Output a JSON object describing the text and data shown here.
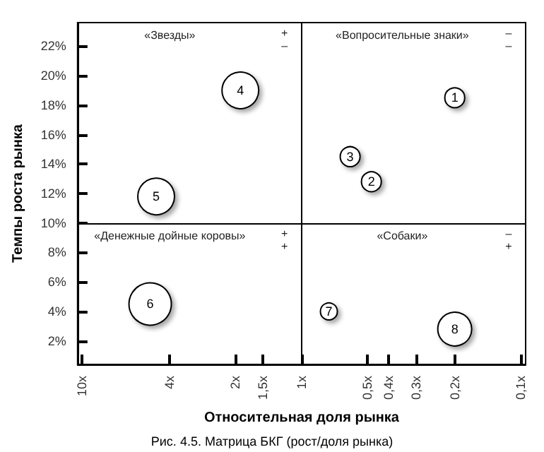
{
  "chart_data": {
    "type": "bubble",
    "xlabel": "Относительная доля рынка",
    "ylabel": "Темпы роста рынка",
    "log": "x",
    "series": [
      {
        "name": "1",
        "color": "#ffffff",
        "x": [
          0.2
        ],
        "values": [
          18.5
        ],
        "sizes": [
          0.22
        ]
      },
      {
        "name": "2",
        "color": "#ffffff",
        "x": [
          0.48
        ],
        "values": [
          12.8
        ],
        "sizes": [
          0.22
        ]
      },
      {
        "name": "3",
        "color": "#ffffff",
        "x": [
          0.6
        ],
        "values": [
          14.5
        ],
        "sizes": [
          0.22
        ]
      },
      {
        "name": "4",
        "color": "#ffffff",
        "x": [
          1.9
        ],
        "values": [
          19
        ],
        "sizes": [
          0.75
        ]
      },
      {
        "name": "5",
        "color": "#ffffff",
        "x": [
          4.6
        ],
        "values": [
          11.8
        ],
        "sizes": [
          0.75
        ]
      },
      {
        "name": "6",
        "color": "#ffffff",
        "x": [
          4.9
        ],
        "values": [
          4.5
        ],
        "sizes": [
          1
        ]
      },
      {
        "name": "7",
        "color": "#ffffff",
        "x": [
          0.75
        ],
        "values": [
          4
        ],
        "sizes": [
          0.16
        ]
      },
      {
        "name": "8",
        "color": "#ffffff",
        "x": [
          0.2
        ],
        "values": [
          2.8
        ],
        "sizes": [
          0.64
        ]
      }
    ],
    "xlim": [
      10.5,
      0.095
    ],
    "xticks": [
      {
        "value": 10,
        "label": "10x"
      },
      {
        "value": 4,
        "label": "4x"
      },
      {
        "value": 2,
        "label": "2x"
      },
      {
        "value": 1.5,
        "label": "1,5x"
      },
      {
        "value": 1,
        "label": "1x"
      },
      {
        "value": 0.5,
        "label": "0,5x"
      },
      {
        "value": 0.4,
        "label": "0,4x"
      },
      {
        "value": 0.3,
        "label": "0,3x"
      },
      {
        "value": 0.2,
        "label": "0,2x"
      },
      {
        "value": 0.1,
        "label": "0,1x"
      }
    ],
    "ylim": [
      0.4,
      23.6
    ],
    "yticks": [
      {
        "value": 2,
        "label": "2%"
      },
      {
        "value": 4,
        "label": "4%"
      },
      {
        "value": 6,
        "label": "6%"
      },
      {
        "value": 8,
        "label": "8%"
      },
      {
        "value": 10,
        "label": "10%"
      },
      {
        "value": 12,
        "label": "12%"
      },
      {
        "value": 14,
        "label": "14%"
      },
      {
        "value": 16,
        "label": "16%"
      },
      {
        "value": 18,
        "label": "18%"
      },
      {
        "value": 20,
        "label": "20%"
      },
      {
        "value": 22,
        "label": "22%"
      }
    ],
    "ref_lines": [
      {
        "axis": "x",
        "value": 1,
        "color": "#000000"
      },
      {
        "axis": "y",
        "value": 10,
        "color": "#000000"
      }
    ],
    "grid": false,
    "legend": false,
    "annotations": [
      "«Звезды»",
      "+\n–",
      "«Вопросительные знаки»",
      "–\n–",
      "«Денежные дойные коровы»",
      "+\n+",
      "«Собаки»",
      "–\n+",
      "Рис. 4.5. Матрица БКГ (рост/доля рынка)"
    ]
  }
}
